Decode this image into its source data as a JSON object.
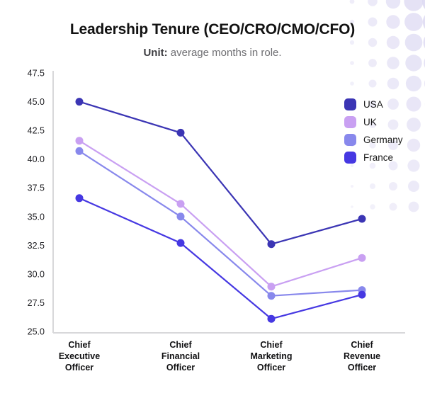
{
  "header": {
    "title": "Leadership Tenure (CEO/CRO/CMO/CFO)",
    "subtitle_label": "Unit:",
    "subtitle_text": " average months in role."
  },
  "chart_data": {
    "type": "line",
    "title": "Leadership Tenure (CEO/CRO/CMO/CFO)",
    "unit": "average months in role",
    "categories": [
      "Chief Executive Officer",
      "Chief Financial Officer",
      "Chief Marketing Officer",
      "Chief Revenue Officer"
    ],
    "series": [
      {
        "name": "USA",
        "color": "#3b35b4",
        "values": [
          45.0,
          42.3,
          32.6,
          34.8
        ]
      },
      {
        "name": "UK",
        "color": "#c9a0f2",
        "values": [
          41.6,
          36.1,
          28.9,
          31.4
        ]
      },
      {
        "name": "Germany",
        "color": "#8888ec",
        "values": [
          40.7,
          35.0,
          28.1,
          28.6
        ]
      },
      {
        "name": "France",
        "color": "#4638e2",
        "values": [
          36.6,
          32.7,
          26.1,
          28.2
        ]
      }
    ],
    "yticks": [
      25.0,
      27.5,
      30.0,
      32.5,
      35.0,
      37.5,
      40.0,
      42.5,
      45.0,
      47.5
    ],
    "ylim": [
      25.0,
      47.5
    ],
    "grid": false,
    "legend_position": "top-right"
  },
  "style": {
    "axis_color": "#d8d8da",
    "tick_label_color": "#1f1f23",
    "category_label_color": "#101012",
    "decor_dot_color": "#dcd8f2"
  }
}
